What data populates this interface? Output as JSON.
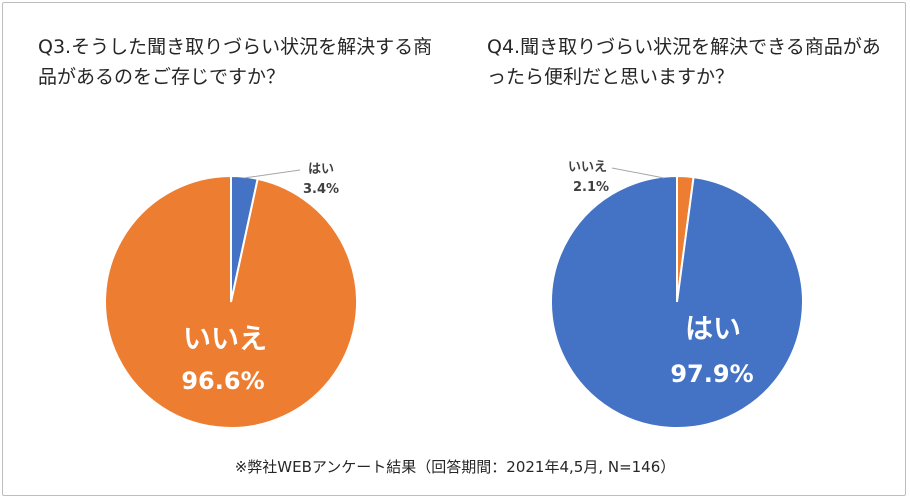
{
  "chart_data": [
    {
      "type": "pie",
      "title": "Q3.そうした聞き取りづらい状況を解決する商品があるのをご存じですか？",
      "slices": [
        {
          "label": "はい",
          "value": 3.4,
          "value_label": "3.4%",
          "color": "#4472C4"
        },
        {
          "label": "いいえ",
          "value": 96.6,
          "value_label": "96.6%",
          "color": "#ED7D31"
        }
      ]
    },
    {
      "type": "pie",
      "title": "Q4.聞き取りづらい状況を解決できる商品があったら便利だと思いますか？",
      "slices": [
        {
          "label": "いいえ",
          "value": 2.1,
          "value_label": "2.1%",
          "color": "#ED7D31"
        },
        {
          "label": "はい",
          "value": 97.9,
          "value_label": "97.9%",
          "color": "#4472C4"
        }
      ]
    }
  ],
  "footnote": "※弊社WEBアンケート結果（回答期間：2021年4,5月, N=146）"
}
